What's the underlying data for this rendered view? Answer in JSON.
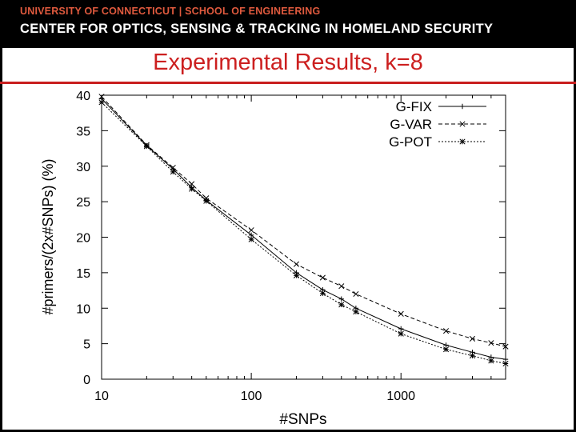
{
  "header": {
    "line1": "UNIVERSITY OF CONNECTICUT | SCHOOL OF ENGINEERING",
    "line2": "CENTER FOR OPTICS, SENSING & TRACKING IN HOMELAND SECURITY"
  },
  "slide": {
    "title": "Experimental Results, k=8"
  },
  "chart_data": {
    "type": "line",
    "xlabel": "#SNPs",
    "ylabel": "#primers/(2x#SNPs) (%)",
    "xscale": "log",
    "xlim": [
      10,
      5000
    ],
    "ylim": [
      0,
      40
    ],
    "xticks": [
      "10",
      "100",
      "1000"
    ],
    "yticks": [
      "0",
      "5",
      "10",
      "15",
      "20",
      "25",
      "30",
      "35",
      "40"
    ],
    "legend_position": "top-right",
    "grid": false,
    "series": [
      {
        "name": "G-FIX",
        "marker": "+",
        "dash": "",
        "x": [
          10,
          20,
          30,
          40,
          50,
          100,
          200,
          300,
          400,
          500,
          1000,
          2000,
          3000,
          4000,
          5000
        ],
        "y": [
          39.5,
          32.9,
          29.6,
          27.0,
          25.2,
          20.3,
          15.0,
          12.6,
          11.3,
          10.0,
          7.1,
          4.8,
          3.8,
          3.1,
          2.8
        ]
      },
      {
        "name": "G-VAR",
        "marker": "x",
        "dash": "5,3",
        "x": [
          10,
          20,
          30,
          40,
          50,
          100,
          200,
          300,
          400,
          500,
          1000,
          2000,
          3000,
          4000,
          5000
        ],
        "y": [
          39.8,
          33.0,
          29.8,
          27.5,
          25.5,
          21.0,
          16.2,
          14.3,
          13.1,
          12.0,
          9.2,
          6.8,
          5.7,
          5.1,
          4.6
        ]
      },
      {
        "name": "G-POT",
        "marker": "*",
        "dash": "2,2",
        "x": [
          10,
          20,
          30,
          40,
          50,
          100,
          200,
          300,
          400,
          500,
          1000,
          2000,
          3000,
          4000,
          5000
        ],
        "y": [
          39.0,
          32.8,
          29.2,
          26.8,
          25.1,
          19.7,
          14.6,
          12.1,
          10.5,
          9.5,
          6.4,
          4.2,
          3.3,
          2.6,
          2.2
        ]
      }
    ]
  }
}
